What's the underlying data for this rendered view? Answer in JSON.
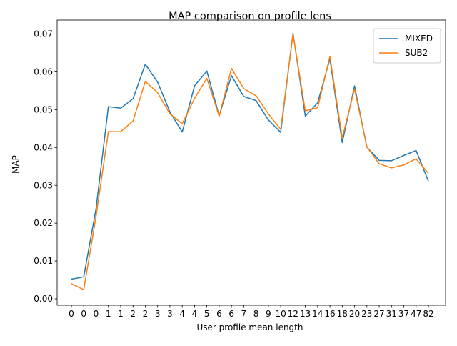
{
  "chart_data": {
    "type": "line",
    "title": "MAP comparison on profile lens",
    "xlabel": "User profile mean length",
    "ylabel": "MAP",
    "categories": [
      "0",
      "0",
      "0",
      "1",
      "1",
      "2",
      "2",
      "3",
      "3",
      "4",
      "4",
      "5",
      "6",
      "6",
      "7",
      "8",
      "9",
      "10",
      "12",
      "13",
      "14",
      "16",
      "18",
      "20",
      "23",
      "27",
      "31",
      "37",
      "47",
      "82"
    ],
    "ylim": [
      -0.0017,
      0.0737
    ],
    "yticks": [
      0.0,
      0.01,
      0.02,
      0.03,
      0.04,
      0.05,
      0.06,
      0.07
    ],
    "ytick_labels": [
      "0.00",
      "0.01",
      "0.02",
      "0.03",
      "0.04",
      "0.05",
      "0.06",
      "0.07"
    ],
    "grid": false,
    "legend": "top-right",
    "series": [
      {
        "name": "MIXED",
        "color": "#1f77b4",
        "values": [
          0.0052,
          0.0058,
          0.0238,
          0.0508,
          0.0504,
          0.0529,
          0.062,
          0.0573,
          0.0494,
          0.0441,
          0.0563,
          0.0602,
          0.0484,
          0.059,
          0.0535,
          0.0524,
          0.0473,
          0.044,
          0.0702,
          0.0483,
          0.0518,
          0.0634,
          0.0413,
          0.0563,
          0.0401,
          0.0366,
          0.0365,
          0.0379,
          0.0392,
          0.0311
        ]
      },
      {
        "name": "SUB2",
        "color": "#ff7f0e",
        "values": [
          0.004,
          0.0024,
          0.0218,
          0.0442,
          0.0442,
          0.047,
          0.0575,
          0.0545,
          0.0489,
          0.0463,
          0.053,
          0.0583,
          0.0483,
          0.0609,
          0.0556,
          0.0537,
          0.0489,
          0.0448,
          0.07,
          0.0497,
          0.0505,
          0.0641,
          0.0425,
          0.0555,
          0.0402,
          0.0357,
          0.0346,
          0.0354,
          0.037,
          0.0332
        ]
      }
    ]
  }
}
